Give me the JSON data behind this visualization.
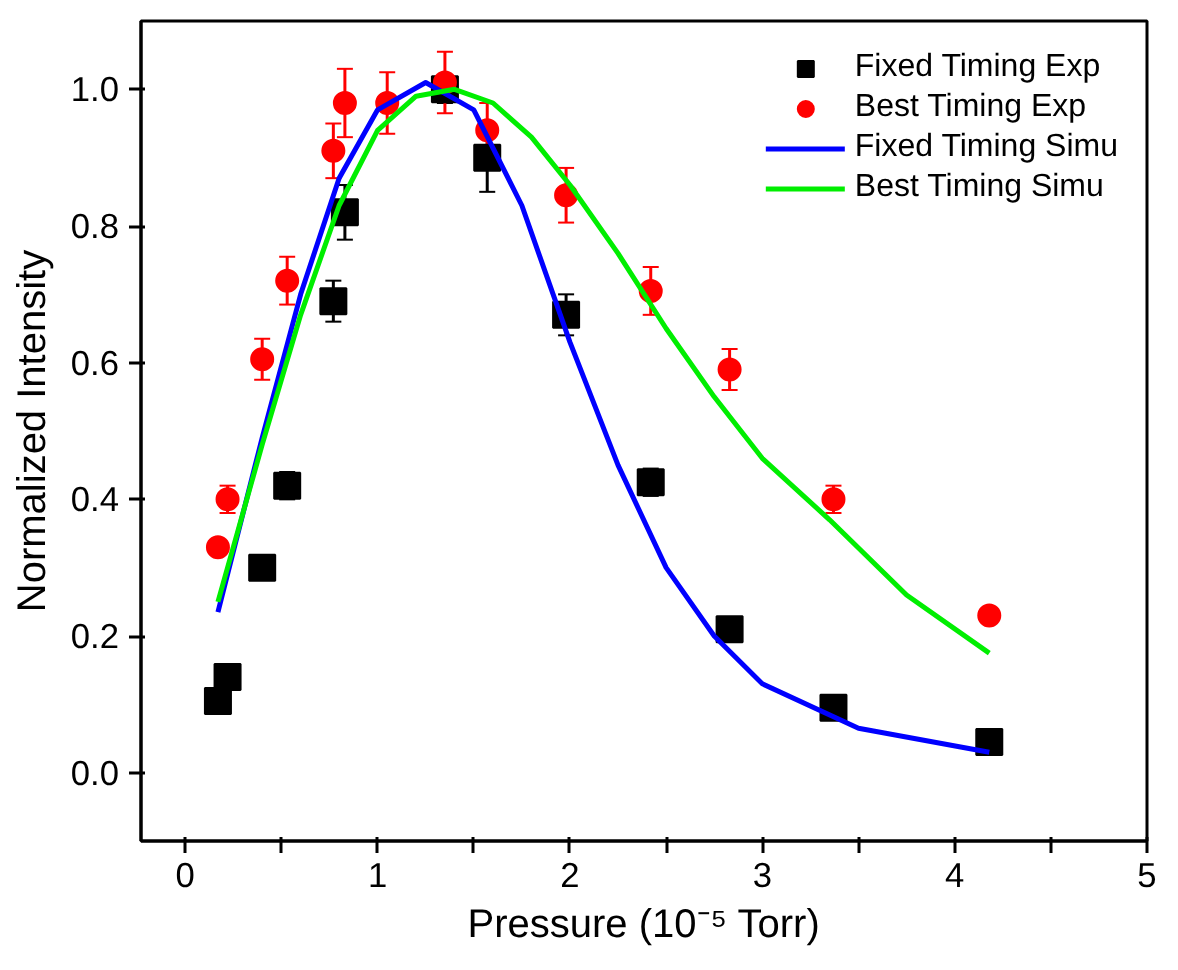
{
  "chart_data": {
    "type": "scatter",
    "xlabel": "Pressure (10⁻⁵ Torr)",
    "ylabel": "Normalized Intensity",
    "xlim": [
      -0.23,
      5
    ],
    "ylim": [
      -0.1,
      1.1
    ],
    "xticks": [
      0,
      {
        "value": 0.5,
        "label": null
      },
      1,
      {
        "value": 1.5,
        "label": null
      },
      2,
      {
        "value": 2.5,
        "label": null
      },
      3,
      {
        "value": 3.5,
        "label": null
      },
      4,
      {
        "value": 4.5,
        "label": null
      },
      5
    ],
    "yticks": [
      {
        "value": 0,
        "label": "0.0"
      },
      {
        "value": 0.2,
        "label": "0.2"
      },
      {
        "value": 0.4,
        "label": "0.4"
      },
      {
        "value": 0.6,
        "label": "0.6"
      },
      {
        "value": 0.8,
        "label": "0.8"
      },
      {
        "value": 1.0,
        "label": "1.0"
      }
    ],
    "grid": false,
    "legend": "top right",
    "series": [
      {
        "name": "Fixed Timing Exp",
        "marker": "square",
        "color": "#000000",
        "x": [
          0.17,
          0.22,
          0.4,
          0.53,
          0.77,
          0.83,
          1.35,
          1.57,
          1.98,
          2.42,
          2.83,
          3.37,
          4.18
        ],
        "values": [
          0.105,
          0.14,
          0.3,
          0.42,
          0.69,
          0.82,
          1.0,
          0.9,
          0.67,
          0.425,
          0.21,
          0.095,
          0.045
        ],
        "errors": [
          null,
          null,
          null,
          0.02,
          0.03,
          0.04,
          0.02,
          0.05,
          0.03,
          0.02,
          null,
          null,
          null
        ]
      },
      {
        "name": "Best Timing Exp",
        "marker": "circle",
        "color": "#ff0000",
        "x": [
          0.17,
          0.22,
          0.4,
          0.53,
          0.77,
          0.83,
          1.05,
          1.35,
          1.57,
          1.98,
          2.42,
          2.83,
          3.37,
          4.18
        ],
        "values": [
          0.33,
          0.4,
          0.605,
          0.72,
          0.91,
          0.98,
          0.98,
          1.01,
          0.94,
          0.845,
          0.705,
          0.59,
          0.4,
          0.23
        ],
        "errors": [
          null,
          0.02,
          0.03,
          0.035,
          0.04,
          0.05,
          0.045,
          0.045,
          0.04,
          0.04,
          0.035,
          0.03,
          0.02,
          null
        ]
      },
      {
        "name": "Fixed Timing Simu",
        "type": "line",
        "color": "#0000ff",
        "x": [
          0.17,
          0.4,
          0.6,
          0.8,
          1.0,
          1.25,
          1.5,
          1.75,
          2.0,
          2.25,
          2.5,
          2.75,
          3.0,
          3.5,
          4.18
        ],
        "values": [
          0.235,
          0.49,
          0.7,
          0.87,
          0.97,
          1.01,
          0.97,
          0.83,
          0.63,
          0.45,
          0.3,
          0.2,
          0.13,
          0.065,
          0.03
        ]
      },
      {
        "name": "Best Timing Simu",
        "type": "line",
        "color": "#00ee00",
        "x": [
          0.17,
          0.4,
          0.6,
          0.8,
          1.0,
          1.2,
          1.4,
          1.6,
          1.8,
          2.0,
          2.25,
          2.5,
          2.75,
          3.0,
          3.35,
          3.75,
          4.18
        ],
        "values": [
          0.25,
          0.48,
          0.67,
          0.83,
          0.94,
          0.99,
          1.0,
          0.98,
          0.93,
          0.86,
          0.76,
          0.65,
          0.55,
          0.46,
          0.37,
          0.26,
          0.175
        ]
      }
    ]
  }
}
